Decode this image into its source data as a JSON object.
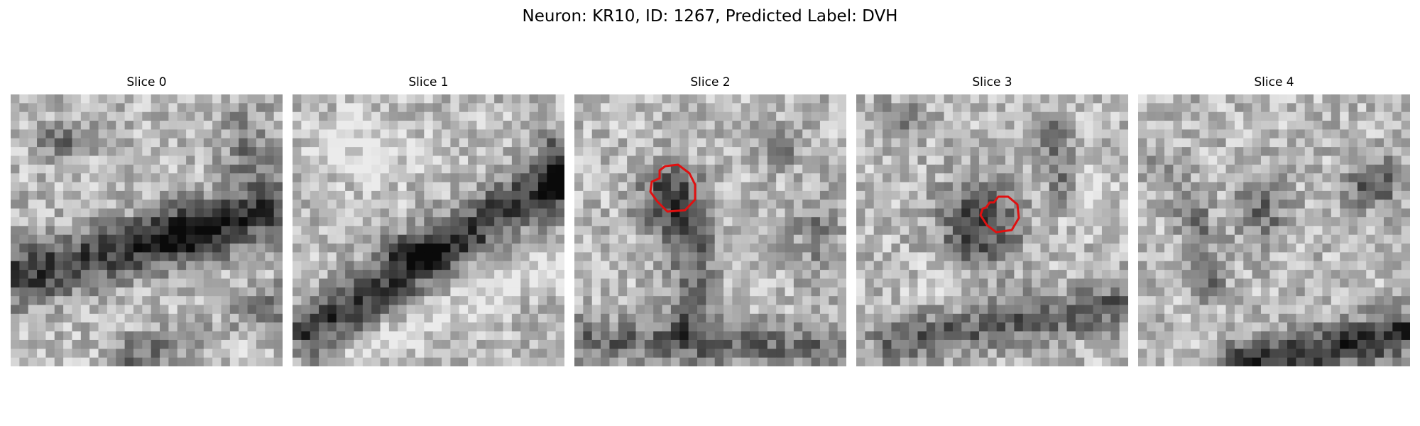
{
  "figure": {
    "title": "Neuron: KR10, ID: 1267, Predicted Label: DVH"
  },
  "panels": [
    {
      "title": "Slice 0",
      "pattern": "slice0-microscopy-texture",
      "outline": false
    },
    {
      "title": "Slice 1",
      "pattern": "slice1-microscopy-texture",
      "outline": false
    },
    {
      "title": "Slice 2",
      "pattern": "slice2-microscopy-texture",
      "outline": true
    },
    {
      "title": "Slice 3",
      "pattern": "slice3-microscopy-texture",
      "outline": true
    },
    {
      "title": "Slice 4",
      "pattern": "slice4-microscopy-texture",
      "outline": false
    }
  ],
  "colors": {
    "outline": "#e01010",
    "background": "#ffffff"
  }
}
